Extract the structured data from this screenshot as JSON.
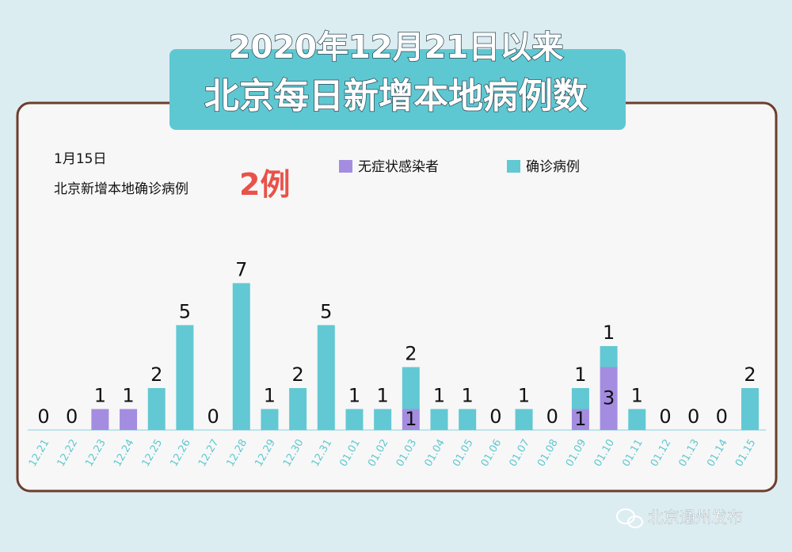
{
  "chart_data": {
    "type": "stacked-bar",
    "title": "2020年12月21日以来",
    "subtitle": "北京每日新增本地病例数",
    "annotations": [
      "1月15日",
      "北京新增本地确诊病例",
      "2例"
    ],
    "categories": [
      "12.21",
      "12.22",
      "12.23",
      "12.24",
      "12.25",
      "12.26",
      "12.27",
      "12.28",
      "12.29",
      "12.30",
      "12.31",
      "01.01",
      "01.02",
      "01.03",
      "01.04",
      "01.05",
      "01.06",
      "01.07",
      "01.08",
      "01.09",
      "01.10",
      "01.11",
      "01.12",
      "01.13",
      "01.14",
      "01.15"
    ],
    "series": [
      {
        "name": "无症状感染者",
        "color": "#a48de0",
        "values": [
          0,
          0,
          1,
          1,
          0,
          0,
          0,
          0,
          0,
          0,
          0,
          0,
          0,
          1,
          0,
          0,
          0,
          0,
          0,
          1,
          3,
          0,
          0,
          0,
          0,
          0
        ]
      },
      {
        "name": "确诊病例",
        "color": "#62c8d3",
        "values": [
          0,
          0,
          0,
          0,
          2,
          5,
          0,
          7,
          1,
          2,
          5,
          1,
          1,
          2,
          1,
          1,
          0,
          1,
          0,
          1,
          1,
          1,
          0,
          0,
          0,
          2
        ]
      }
    ],
    "highlight_color": "#e8524a",
    "source": "北京通州发布"
  }
}
